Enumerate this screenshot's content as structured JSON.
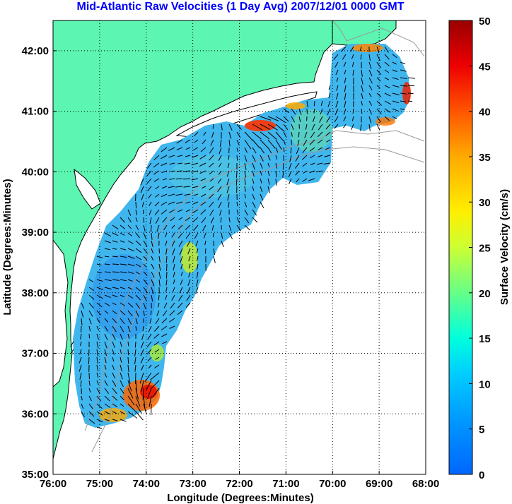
{
  "title": "Mid-Atlantic Raw Velocities (1 Day Avg) 2007/12/01 0000 GMT",
  "x_axis": {
    "label": "Longitude (Degrees:Minutes)",
    "ticks": [
      "76:00",
      "75:00",
      "74:00",
      "73:00",
      "72:00",
      "71:00",
      "70:00",
      "69:00",
      "68:00"
    ],
    "range": [
      -76,
      -68
    ]
  },
  "y_axis": {
    "label": "Latitude (Degrees:Minutes)",
    "ticks": [
      "35:00",
      "36:00",
      "37:00",
      "38:00",
      "39:00",
      "40:00",
      "41:00",
      "42:00"
    ],
    "range": [
      35,
      42.5
    ]
  },
  "colorbar": {
    "label": "Surface Velocity (cm/s)",
    "ticks": [
      "0",
      "5",
      "10",
      "15",
      "20",
      "25",
      "30",
      "35",
      "40",
      "45",
      "50"
    ],
    "range": [
      0,
      50
    ],
    "colormap": [
      "#0066ff",
      "#00ccff",
      "#00ffdd",
      "#66ff88",
      "#ccff33",
      "#ffee00",
      "#ffaa00",
      "#ff5500",
      "#ee0000",
      "#990000"
    ]
  },
  "colors": {
    "land": "#5cf5b2",
    "coast_line": "#000000",
    "bathymetry": "#999999",
    "grid": "#000000",
    "vector": "#000000"
  },
  "grid": {
    "style": "dotted",
    "visible": true
  }
}
